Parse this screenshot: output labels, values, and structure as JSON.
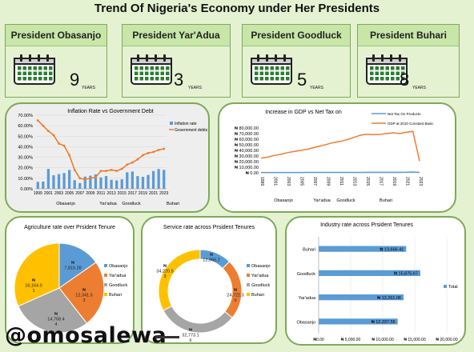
{
  "title": "Trend Of Nigeria's Economy under Her Presidents",
  "cards": [
    {
      "name": "President Obasanjo",
      "years": "9",
      "unit": "YEARS"
    },
    {
      "name": "President Yar'Adua",
      "years": "3",
      "unit": "YEARS"
    },
    {
      "name": "President Goodluck",
      "years": "5",
      "unit": "YEARS"
    },
    {
      "name": "President Buhari",
      "years": "8",
      "unit": "YEARS"
    }
  ],
  "watermark": "@omosalewa",
  "colors": {
    "blue": "#5b9bd5",
    "orange": "#ed7d31",
    "grey": "#a5a5a5",
    "gold": "#ffc000",
    "green_border": "#7fa85a"
  },
  "chart_data": [
    {
      "type": "bar",
      "title": "Inflation Rate vs Government Debt",
      "x": [
        "1999",
        "2000",
        "2001",
        "2002",
        "2003",
        "2004",
        "2005",
        "2006",
        "2007",
        "2008",
        "2009",
        "2010",
        "2011",
        "2012",
        "2013",
        "2014",
        "2015",
        "2016",
        "2017",
        "2018",
        "2019",
        "2020",
        "2021",
        "2022",
        "2023"
      ],
      "x_tick_labels": [
        "1999",
        "2001",
        "2003",
        "2005",
        "2007",
        "2009",
        "2011",
        "2013",
        "2015",
        "2017",
        "2019",
        "2021",
        "2023"
      ],
      "group_labels": [
        "Obasanjo",
        "Yar'adua",
        "Goodluck",
        "Buhari"
      ],
      "ylim": [
        0,
        70
      ],
      "y_ticks": [
        "0.00%",
        "10.00%",
        "20.00%",
        "30.00%",
        "40.00%",
        "50.00%",
        "60.00%",
        "70.00%"
      ],
      "series": [
        {
          "name": "Inflation rate",
          "kind": "bar",
          "values": [
            6.6,
            6.9,
            18.9,
            12.9,
            14.0,
            15.0,
            17.9,
            8.2,
            5.4,
            11.6,
            12.5,
            13.7,
            10.8,
            12.2,
            8.5,
            8.0,
            9.0,
            15.7,
            16.5,
            12.1,
            11.4,
            13.2,
            17.0,
            18.8,
            18.0
          ]
        },
        {
          "name": "Government debts",
          "kind": "line",
          "values": [
            65,
            60,
            55,
            51,
            43,
            41,
            32,
            18,
            10,
            9,
            10,
            11,
            17,
            17,
            18,
            17,
            19,
            23,
            25,
            28,
            32,
            34,
            35,
            37,
            38
          ]
        }
      ],
      "legend": "right"
    },
    {
      "type": "line",
      "title": "Increase in GDP vs Net Tax on",
      "x": [
        "1999",
        "2000",
        "2001",
        "2002",
        "2003",
        "2004",
        "2005",
        "2006",
        "2007",
        "2008",
        "2009",
        "2010",
        "2011",
        "2012",
        "2013",
        "2014",
        "2015",
        "2016",
        "2017",
        "2018",
        "2019",
        "2020",
        "2021",
        "2022",
        "2023"
      ],
      "x_tick_labels": [
        "1999",
        "2001",
        "2003",
        "2005",
        "2007",
        "2009",
        "2011",
        "2013",
        "2015",
        "2017",
        "2019",
        "2021",
        "2023"
      ],
      "group_labels": [
        "Obasanjo",
        "Yar'adua",
        "Goodluck",
        "Buhari"
      ],
      "ylim": [
        0,
        80000
      ],
      "y_ticks": [
        "₦ 0.00",
        "₦ 10,000.00",
        "₦ 20,000.00",
        "₦ 30,000.00",
        "₦ 40,000.00",
        "₦ 50,000.00",
        "₦ 60,000.00",
        "₦ 70,000.00",
        "₦ 80,000.00"
      ],
      "series": [
        {
          "name": "Net Tax On Products",
          "values": [
            500,
            520,
            540,
            560,
            580,
            600,
            620,
            640,
            660,
            680,
            700,
            720,
            740,
            760,
            780,
            800,
            820,
            840,
            860,
            880,
            900,
            920,
            1000,
            1500,
            800
          ]
        },
        {
          "name": "GDP at 2010 Constant Basic",
          "values": [
            26000,
            28000,
            31000,
            33000,
            36000,
            38000,
            40000,
            42000,
            45000,
            48000,
            51000,
            54000,
            56000,
            59000,
            63000,
            67000,
            69000,
            68000,
            68500,
            70000,
            71500,
            70000,
            72500,
            74000,
            21000
          ]
        }
      ],
      "legend": "top-right"
    },
    {
      "type": "pie",
      "title": "Agriculture rate over Prsident Tenure",
      "categories": [
        "Obasanjo",
        "Yar'adua",
        "Goodluck",
        "Buhari"
      ],
      "values": [
        7815.28,
        12341.53,
        14768.44,
        16164.01
      ],
      "labels": [
        [
          "₦",
          "7,815.28"
        ],
        [
          "₦",
          "12,341.5",
          "3"
        ],
        [
          "₦",
          "14,768.4",
          "4"
        ],
        [
          "₦",
          "16,164.0",
          "1"
        ]
      ],
      "legend": "right"
    },
    {
      "type": "pie",
      "title": "Service rate across Prsident Tenures",
      "categories": [
        "Obasanjo",
        "Yar'adua",
        "Goodluck",
        "Buhari"
      ],
      "values": [
        12966.2,
        24722.3,
        32773.16,
        34220.53
      ],
      "labels": [
        [
          "₦",
          "12,966.2"
        ],
        [
          "₦",
          "24,722.3",
          "0"
        ],
        [
          "₦",
          "32,773.1",
          "6"
        ],
        [
          "₦",
          "34,220.5",
          "3"
        ]
      ],
      "legend": "right"
    },
    {
      "type": "bar",
      "orientation": "horizontal",
      "title": "Industry rate across Prsident Tenures",
      "categories": [
        "Buhari",
        "Goodluck",
        "Yar'adua",
        "Obasanjo"
      ],
      "values": [
        13666.41,
        15875.67,
        13261.06,
        12337.55
      ],
      "labels": [
        "₦ 13,666.41",
        "₦ 15,875.67",
        "₦ 13,261.06",
        "₦ 12,337.55"
      ],
      "xlim": [
        0,
        20000
      ],
      "x_ticks": [
        "₦0.00",
        "₦ 5,000.00",
        "₦ 10,000.00",
        "₦ 15,000.00",
        "₦ 20,000.00"
      ],
      "series_name": "Total",
      "legend": "right"
    }
  ]
}
